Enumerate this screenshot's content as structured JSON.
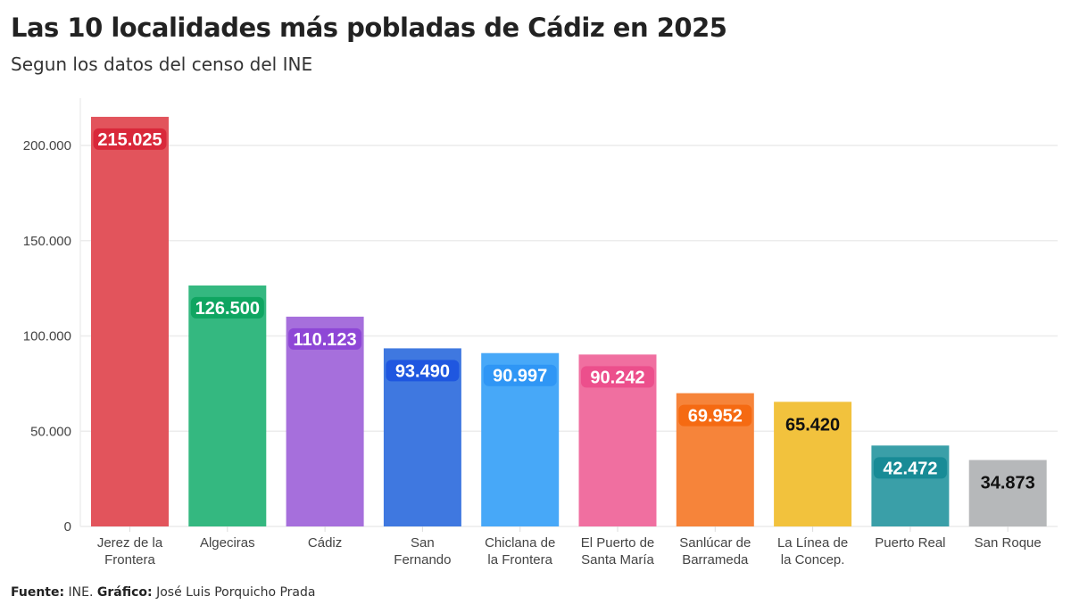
{
  "title": "Las 10 localidades más pobladas de Cádiz en 2025",
  "subtitle": "Segun los datos del censo del INE",
  "footer": {
    "source_label": "Fuente:",
    "source": " INE. ",
    "chart_label": "Gráfico:",
    "author": " José Luis Porquicho Prada"
  },
  "chart_data": {
    "type": "bar",
    "title": "Las 10 localidades más pobladas de Cádiz en 2025",
    "subtitle": "Segun los datos del censo del INE",
    "xlabel": "",
    "ylabel": "",
    "ylim": [
      0,
      215025
    ],
    "grid": true,
    "yticks": [
      0,
      50000,
      100000,
      150000,
      200000
    ],
    "ytick_labels": [
      "0",
      "50.000",
      "100.000",
      "150.000",
      "200.000"
    ],
    "categories": [
      [
        "Jerez de la",
        "Frontera"
      ],
      [
        "Algeciras"
      ],
      [
        "Cádiz"
      ],
      [
        "San",
        "Fernando"
      ],
      [
        "Chiclana de",
        "la Frontera"
      ],
      [
        "El Puerto de",
        "Santa María"
      ],
      [
        "Sanlúcar de",
        "Barrameda"
      ],
      [
        "La Línea de",
        "la Concep."
      ],
      [
        "Puerto Real"
      ],
      [
        "San Roque"
      ]
    ],
    "values": [
      215025,
      126500,
      110123,
      93490,
      90997,
      90242,
      69952,
      65420,
      42472,
      34873
    ],
    "value_labels": [
      "215.025",
      "126.500",
      "110.123",
      "93.490",
      "90.997",
      "90.242",
      "69.952",
      "65.420",
      "42.472",
      "34.873"
    ],
    "colors": [
      "#e2545c",
      "#34b880",
      "#a66fdc",
      "#3f78e0",
      "#47a8f8",
      "#f06fa0",
      "#f6843a",
      "#f2c23d",
      "#3a9fa8",
      "#b6b8ba"
    ],
    "label_colors": [
      "#d9283a",
      "#0fa561",
      "#8e47d6",
      "#1f57e0",
      "#2f96f5",
      "#ec4f8c",
      "#f56a12",
      "#f2c23d",
      "#188b96",
      "#b6b8ba"
    ],
    "label_text_colors": [
      "#fff",
      "#fff",
      "#fff",
      "#fff",
      "#fff",
      "#fff",
      "#fff",
      "#111",
      "#fff",
      "#111"
    ]
  }
}
